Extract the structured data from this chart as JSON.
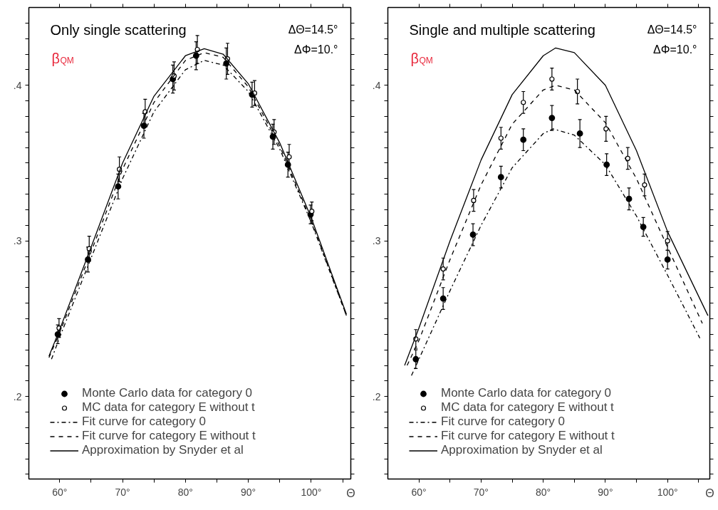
{
  "chart_data": [
    {
      "type": "scatter",
      "title": "Only single scattering",
      "xlabel": "Θ",
      "annotations": [
        "ΔΘ=14.5°",
        "ΔΦ=10.°",
        "β$_{QM}$"
      ],
      "xlim": [
        55.1,
        106.3
      ],
      "ylim": [
        0.147,
        0.45
      ],
      "xticks": [
        {
          "value": 60,
          "label": "60°"
        },
        {
          "value": 65,
          "label": null
        },
        {
          "value": 70,
          "label": "70°"
        },
        {
          "value": 75,
          "label": null
        },
        {
          "value": 80,
          "label": "80°"
        },
        {
          "value": 85,
          "label": null
        },
        {
          "value": 90,
          "label": "90°"
        },
        {
          "value": 95,
          "label": null
        },
        {
          "value": 100,
          "label": "100°"
        },
        {
          "value": 105,
          "label": null
        }
      ],
      "yticks": [
        {
          "value": 0.15,
          "label": null
        },
        {
          "value": 0.16,
          "label": null
        },
        {
          "value": 0.17,
          "label": null
        },
        {
          "value": 0.18,
          "label": null
        },
        {
          "value": 0.19,
          "label": null
        },
        {
          "value": 0.2,
          "label": ".2"
        },
        {
          "value": 0.21,
          "label": null
        },
        {
          "value": 0.22,
          "label": null
        },
        {
          "value": 0.23,
          "label": null
        },
        {
          "value": 0.24,
          "label": null
        },
        {
          "value": 0.25,
          "label": null
        },
        {
          "value": 0.26,
          "label": null
        },
        {
          "value": 0.27,
          "label": null
        },
        {
          "value": 0.28,
          "label": null
        },
        {
          "value": 0.29,
          "label": null
        },
        {
          "value": 0.3,
          "label": ".3"
        },
        {
          "value": 0.31,
          "label": null
        },
        {
          "value": 0.32,
          "label": null
        },
        {
          "value": 0.33,
          "label": null
        },
        {
          "value": 0.34,
          "label": null
        },
        {
          "value": 0.35,
          "label": null
        },
        {
          "value": 0.36,
          "label": null
        },
        {
          "value": 0.37,
          "label": null
        },
        {
          "value": 0.38,
          "label": null
        },
        {
          "value": 0.39,
          "label": null
        },
        {
          "value": 0.4,
          "label": ".4"
        },
        {
          "value": 0.41,
          "label": null
        },
        {
          "value": 0.42,
          "label": null
        },
        {
          "value": 0.43,
          "label": null
        },
        {
          "value": 0.44,
          "label": null
        }
      ],
      "grid": false,
      "legend": "bottom left",
      "series": [
        {
          "name": "Monte Carlo data for category 0",
          "marker": "circle",
          "color": "#000000",
          "x": [
            59.7,
            64.5,
            69.3,
            73.4,
            78.0,
            81.7,
            86.5,
            90.6,
            93.9,
            96.3,
            99.9
          ],
          "values": [
            0.24,
            0.288,
            0.335,
            0.374,
            0.404,
            0.419,
            0.414,
            0.394,
            0.367,
            0.349,
            0.317
          ],
          "errors": [
            0.006,
            0.008,
            0.008,
            0.008,
            0.009,
            0.009,
            0.01,
            0.008,
            0.008,
            0.008,
            0.006
          ]
        },
        {
          "name": "MC data for category E without t",
          "marker": "circle",
          "color": "#ffffff",
          "x": [
            59.9,
            64.7,
            69.5,
            73.6,
            78.2,
            81.9,
            86.7,
            91.0,
            94.1,
            96.5,
            100.1
          ],
          "values": [
            0.244,
            0.295,
            0.346,
            0.383,
            0.406,
            0.423,
            0.417,
            0.395,
            0.37,
            0.354,
            0.319
          ],
          "errors": [
            0.006,
            0.008,
            0.008,
            0.008,
            0.009,
            0.009,
            0.01,
            0.008,
            0.008,
            0.008,
            0.006
          ]
        },
        {
          "name": "Fit curve for category 0",
          "type": "line",
          "line_style": "dashdot",
          "color": "#000000",
          "x": [
            58.7,
            60,
            65,
            70,
            75,
            80,
            83,
            86,
            90,
            95,
            100,
            105.6
          ],
          "values": [
            0.224,
            0.238,
            0.289,
            0.34,
            0.383,
            0.41,
            0.416,
            0.413,
            0.396,
            0.359,
            0.312,
            0.252
          ]
        },
        {
          "name": "Fit curve for category E without t",
          "type": "line",
          "line_style": "dashed",
          "color": "#000000",
          "x": [
            58.3,
            60,
            65,
            70,
            75,
            80,
            83,
            86,
            90,
            95,
            100,
            105.6
          ],
          "values": [
            0.225,
            0.241,
            0.293,
            0.346,
            0.389,
            0.416,
            0.421,
            0.418,
            0.399,
            0.361,
            0.313,
            0.252
          ]
        },
        {
          "name": "Approximation by Snyder et al",
          "type": "line",
          "line_style": "solid",
          "color": "#000000",
          "x": [
            58.3,
            60,
            65,
            70,
            75,
            80,
            83,
            86,
            90,
            95,
            100,
            105.6
          ],
          "values": [
            0.226,
            0.243,
            0.296,
            0.35,
            0.393,
            0.419,
            0.4235,
            0.42,
            0.401,
            0.363,
            0.315,
            0.253
          ]
        }
      ]
    },
    {
      "type": "scatter",
      "title": "Single and multiple scattering",
      "xlabel": "Θ",
      "annotations": [
        "ΔΘ=14.5°",
        "ΔΦ=10.°",
        "β$_{QM}$"
      ],
      "xlim": [
        55.0,
        106.8
      ],
      "ylim": [
        0.147,
        0.45
      ],
      "xticks": [
        {
          "value": 60,
          "label": "60°"
        },
        {
          "value": 65,
          "label": null
        },
        {
          "value": 70,
          "label": "70°"
        },
        {
          "value": 75,
          "label": null
        },
        {
          "value": 80,
          "label": "80°"
        },
        {
          "value": 85,
          "label": null
        },
        {
          "value": 90,
          "label": "90°"
        },
        {
          "value": 95,
          "label": null
        },
        {
          "value": 100,
          "label": "100°"
        },
        {
          "value": 105,
          "label": null
        }
      ],
      "yticks": [
        {
          "value": 0.15,
          "label": null
        },
        {
          "value": 0.16,
          "label": null
        },
        {
          "value": 0.17,
          "label": null
        },
        {
          "value": 0.18,
          "label": null
        },
        {
          "value": 0.19,
          "label": null
        },
        {
          "value": 0.2,
          "label": ".2"
        },
        {
          "value": 0.21,
          "label": null
        },
        {
          "value": 0.22,
          "label": null
        },
        {
          "value": 0.23,
          "label": null
        },
        {
          "value": 0.24,
          "label": null
        },
        {
          "value": 0.25,
          "label": null
        },
        {
          "value": 0.26,
          "label": null
        },
        {
          "value": 0.27,
          "label": null
        },
        {
          "value": 0.28,
          "label": null
        },
        {
          "value": 0.29,
          "label": null
        },
        {
          "value": 0.3,
          "label": ".3"
        },
        {
          "value": 0.31,
          "label": null
        },
        {
          "value": 0.32,
          "label": null
        },
        {
          "value": 0.33,
          "label": null
        },
        {
          "value": 0.34,
          "label": null
        },
        {
          "value": 0.35,
          "label": null
        },
        {
          "value": 0.36,
          "label": null
        },
        {
          "value": 0.37,
          "label": null
        },
        {
          "value": 0.38,
          "label": null
        },
        {
          "value": 0.39,
          "label": null
        },
        {
          "value": 0.4,
          "label": ".4"
        },
        {
          "value": 0.41,
          "label": null
        },
        {
          "value": 0.42,
          "label": null
        },
        {
          "value": 0.43,
          "label": null
        },
        {
          "value": 0.44,
          "label": null
        }
      ],
      "grid": false,
      "legend": "bottom left",
      "series": [
        {
          "name": "Monte Carlo data for category 0",
          "marker": "circle",
          "color": "#000000",
          "x": [
            59.5,
            63.9,
            68.7,
            73.2,
            76.8,
            81.4,
            85.9,
            90.2,
            93.8,
            96.1,
            100.0
          ],
          "values": [
            0.224,
            0.263,
            0.304,
            0.341,
            0.365,
            0.379,
            0.369,
            0.349,
            0.327,
            0.309,
            0.288
          ],
          "errors": [
            0.006,
            0.007,
            0.007,
            0.007,
            0.007,
            0.008,
            0.009,
            0.007,
            0.007,
            0.006,
            0.006
          ]
        },
        {
          "name": "MC data for category E without t",
          "marker": "circle",
          "color": "#ffffff",
          "x": [
            59.5,
            63.9,
            68.8,
            73.2,
            76.8,
            81.4,
            85.5,
            90.1,
            93.6,
            96.3,
            100.0
          ],
          "values": [
            0.237,
            0.282,
            0.326,
            0.366,
            0.389,
            0.404,
            0.396,
            0.372,
            0.353,
            0.336,
            0.3
          ],
          "errors": [
            0.006,
            0.007,
            0.007,
            0.007,
            0.007,
            0.007,
            0.008,
            0.008,
            0.007,
            0.007,
            0.006
          ]
        },
        {
          "name": "Fit curve for category 0",
          "type": "line",
          "line_style": "dashdot",
          "color": "#000000",
          "x": [
            58.8,
            60,
            65,
            70,
            75,
            80,
            81.6,
            85,
            90,
            95,
            100,
            105.2
          ],
          "values": [
            0.2135,
            0.224,
            0.268,
            0.31,
            0.347,
            0.369,
            0.372,
            0.368,
            0.349,
            0.316,
            0.278,
            0.2375
          ]
        },
        {
          "name": "Fit curve for category E without t",
          "type": "line",
          "line_style": "dashed",
          "color": "#000000",
          "x": [
            58.1,
            60,
            65,
            70,
            75,
            80,
            82,
            85,
            90,
            95,
            100,
            105.6
          ],
          "values": [
            0.22,
            0.236,
            0.288,
            0.336,
            0.375,
            0.397,
            0.4,
            0.397,
            0.376,
            0.34,
            0.296,
            0.247
          ]
        },
        {
          "name": "Approximation by Snyder et al",
          "type": "line",
          "line_style": "solid",
          "color": "#000000",
          "x": [
            57.7,
            60,
            65,
            70,
            75,
            80,
            82,
            85,
            90,
            95,
            100,
            106.5
          ],
          "values": [
            0.22,
            0.244,
            0.3,
            0.352,
            0.394,
            0.419,
            0.424,
            0.421,
            0.4,
            0.358,
            0.306,
            0.252
          ]
        }
      ]
    }
  ]
}
